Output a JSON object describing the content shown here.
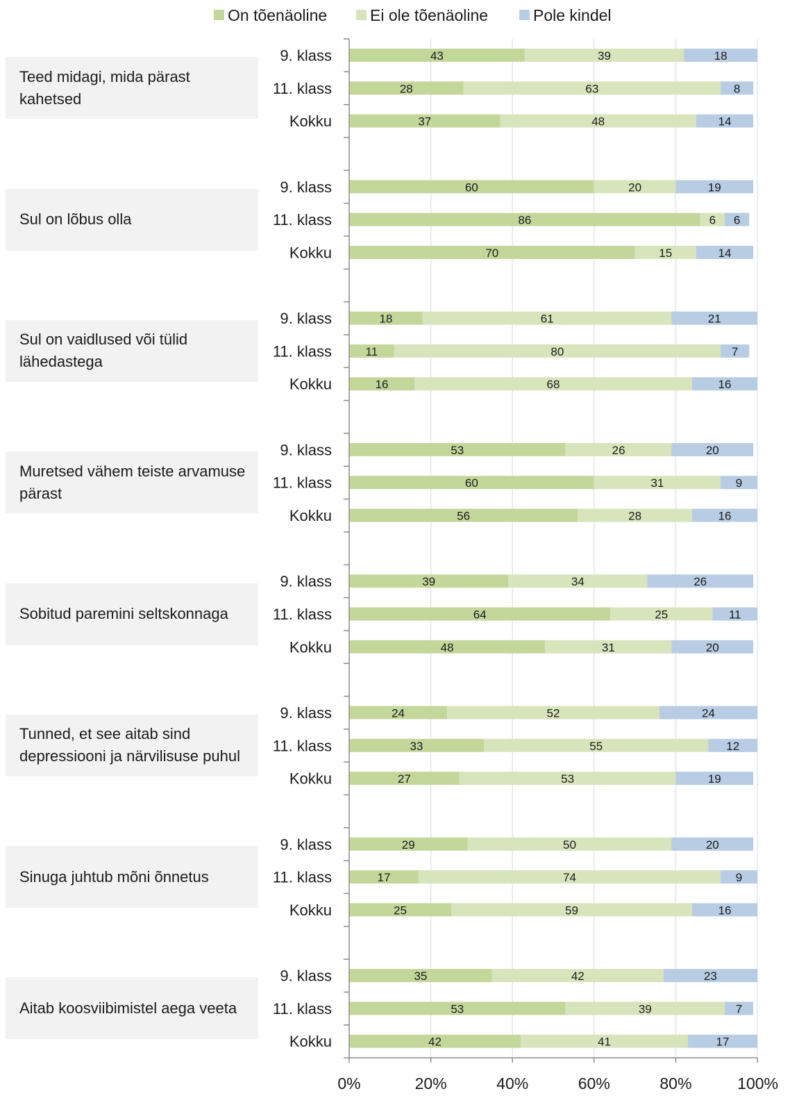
{
  "chart_data": {
    "type": "bar",
    "orientation": "horizontal",
    "stacked": true,
    "legend": [
      {
        "name": "On tõenäoline",
        "color": "#c4d79b"
      },
      {
        "name": "Ei ole tõenäoline",
        "color": "#d8e4bc"
      },
      {
        "name": "Pole kindel",
        "color": "#b8cce4"
      }
    ],
    "legend_position": "top",
    "x_ticks": [
      "0%",
      "20%",
      "40%",
      "60%",
      "80%",
      "100%"
    ],
    "xlim": [
      0,
      100
    ],
    "grid": true,
    "groups": [
      {
        "label": "Teed midagi, mida pärast kahetsed",
        "rows": [
          {
            "label": "9. klass",
            "values": [
              43,
              39,
              18
            ]
          },
          {
            "label": "11. klass",
            "values": [
              28,
              63,
              8
            ]
          },
          {
            "label": "Kokku",
            "values": [
              37,
              48,
              14
            ]
          }
        ]
      },
      {
        "label": "Sul on lõbus olla",
        "rows": [
          {
            "label": "9. klass",
            "values": [
              60,
              20,
              19
            ]
          },
          {
            "label": "11. klass",
            "values": [
              86,
              6,
              6
            ]
          },
          {
            "label": "Kokku",
            "values": [
              70,
              15,
              14
            ]
          }
        ]
      },
      {
        "label": "Sul on vaidlused või tülid lähedastega",
        "rows": [
          {
            "label": "9. klass",
            "values": [
              18,
              61,
              21
            ]
          },
          {
            "label": "11. klass",
            "values": [
              11,
              80,
              7
            ]
          },
          {
            "label": "Kokku",
            "values": [
              16,
              68,
              16
            ]
          }
        ]
      },
      {
        "label": "Muretsed vähem teiste arvamuse pärast",
        "rows": [
          {
            "label": "9. klass",
            "values": [
              53,
              26,
              20
            ]
          },
          {
            "label": "11. klass",
            "values": [
              60,
              31,
              9
            ]
          },
          {
            "label": "Kokku",
            "values": [
              56,
              28,
              16
            ]
          }
        ]
      },
      {
        "label": "Sobitud paremini seltskonnaga",
        "rows": [
          {
            "label": "9. klass",
            "values": [
              39,
              34,
              26
            ]
          },
          {
            "label": "11. klass",
            "values": [
              64,
              25,
              11
            ]
          },
          {
            "label": "Kokku",
            "values": [
              48,
              31,
              20
            ]
          }
        ]
      },
      {
        "label": "Tunned, et see aitab sind depressiooni ja närvilisuse puhul",
        "rows": [
          {
            "label": "9. klass",
            "values": [
              24,
              52,
              24
            ]
          },
          {
            "label": "11. klass",
            "values": [
              33,
              55,
              12
            ]
          },
          {
            "label": "Kokku",
            "values": [
              27,
              53,
              19
            ]
          }
        ]
      },
      {
        "label": "Sinuga juhtub mõni õnnetus",
        "rows": [
          {
            "label": "9. klass",
            "values": [
              29,
              50,
              20
            ]
          },
          {
            "label": "11. klass",
            "values": [
              17,
              74,
              9
            ]
          },
          {
            "label": "Kokku",
            "values": [
              25,
              59,
              16
            ]
          }
        ]
      },
      {
        "label": "Aitab koosviibimistel aega veeta",
        "rows": [
          {
            "label": "9. klass",
            "values": [
              35,
              42,
              23
            ]
          },
          {
            "label": "11. klass",
            "values": [
              53,
              39,
              7
            ]
          },
          {
            "label": "Kokku",
            "values": [
              42,
              41,
              17
            ]
          }
        ]
      }
    ]
  }
}
